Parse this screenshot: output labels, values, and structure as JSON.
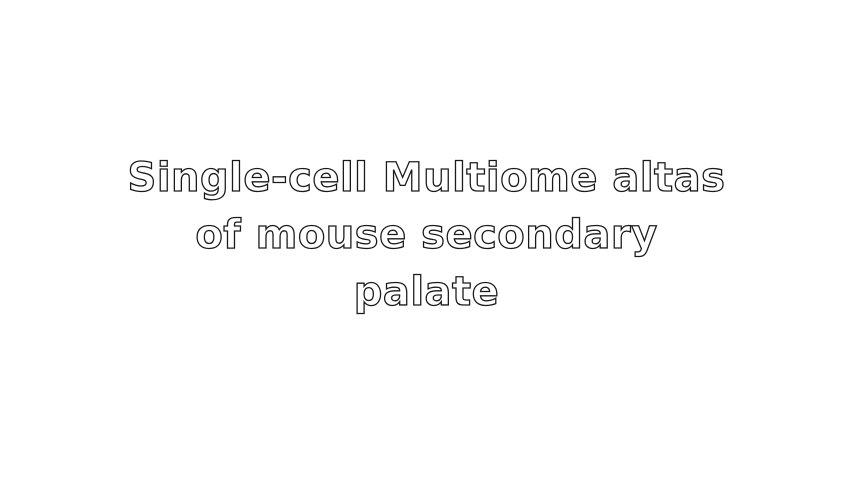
{
  "slide": {
    "title_lines": [
      "Single-cell Multiome altas",
      "of mouse secondary",
      "palate"
    ]
  },
  "colors": {
    "background": "#ffffff",
    "text_fill": "#ffffff",
    "text_outline": "#1a1a1a"
  }
}
